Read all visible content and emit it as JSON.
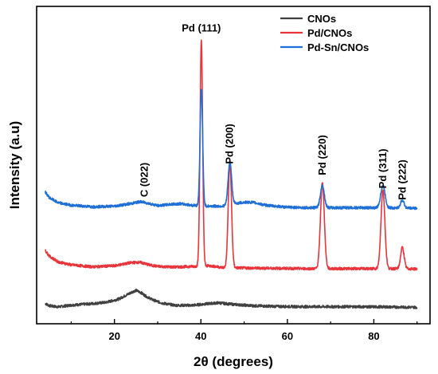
{
  "chart_data": {
    "type": "line",
    "xlabel": "2θ (degrees)",
    "ylabel": "Intensity (a.u)",
    "xlim": [
      2,
      93
    ],
    "x_ticks": [
      20,
      40,
      60,
      80
    ],
    "x_ticks_minor": [
      10,
      30,
      50,
      70,
      90
    ],
    "y_ticks_shown": false,
    "legend_position": "top-right",
    "legend": [
      "CNOs",
      "Pd/CNOs",
      "Pd-Sn/CNOs"
    ],
    "series": [
      {
        "name": "CNOs",
        "color": "#404040",
        "baseline": 0.07,
        "x": [
          4,
          5,
          7,
          10,
          14,
          18,
          21,
          23,
          24.5,
          25,
          26,
          27.5,
          29,
          31,
          34,
          38,
          41,
          44,
          47,
          52,
          58,
          64,
          70,
          76,
          82,
          86,
          90
        ],
        "y": [
          0.09,
          0.08,
          0.075,
          0.083,
          0.088,
          0.095,
          0.11,
          0.13,
          0.145,
          0.148,
          0.14,
          0.12,
          0.105,
          0.092,
          0.082,
          0.082,
          0.088,
          0.093,
          0.087,
          0.08,
          0.077,
          0.076,
          0.076,
          0.076,
          0.075,
          0.074,
          0.073
        ]
      },
      {
        "name": "Pd/CNOs",
        "color": "#e8343a",
        "baseline": 0.24,
        "x": [
          4,
          5,
          7,
          10,
          15,
          20,
          24,
          26,
          28,
          30,
          34,
          38,
          42,
          45,
          50,
          55,
          60,
          65,
          70,
          75,
          80,
          85,
          90
        ],
        "y": [
          0.325,
          0.3,
          0.275,
          0.262,
          0.253,
          0.258,
          0.272,
          0.273,
          0.262,
          0.255,
          0.252,
          0.255,
          0.258,
          0.25,
          0.248,
          0.247,
          0.246,
          0.245,
          0.245,
          0.245,
          0.245,
          0.245,
          0.244
        ],
        "peaks": [
          {
            "x": 40.1,
            "height": 1.0,
            "w": 0.3
          },
          {
            "x": 46.7,
            "height": 0.47,
            "w": 0.38
          },
          {
            "x": 68.1,
            "height": 0.38,
            "w": 0.45
          },
          {
            "x": 82.1,
            "height": 0.35,
            "w": 0.45
          },
          {
            "x": 86.6,
            "height": 0.095,
            "w": 0.4
          }
        ]
      },
      {
        "name": "Pd-Sn/CNOs",
        "color": "#1f6fd8",
        "baseline": 0.51,
        "x": [
          4,
          5,
          7,
          10,
          15,
          20,
          24,
          26,
          28,
          30,
          33,
          35,
          38,
          42,
          45,
          48,
          50,
          52,
          55,
          60,
          65,
          70,
          75,
          80,
          85,
          90
        ],
        "y": [
          0.585,
          0.56,
          0.538,
          0.527,
          0.52,
          0.523,
          0.535,
          0.543,
          0.535,
          0.525,
          0.531,
          0.534,
          0.527,
          0.523,
          0.523,
          0.535,
          0.54,
          0.54,
          0.527,
          0.518,
          0.516,
          0.516,
          0.516,
          0.516,
          0.515,
          0.514
        ],
        "peaks": [
          {
            "x": 40.1,
            "height": 0.52,
            "w": 0.3
          },
          {
            "x": 46.7,
            "height": 0.19,
            "w": 0.4
          },
          {
            "x": 68.1,
            "height": 0.1,
            "w": 0.45
          },
          {
            "x": 82.1,
            "height": 0.1,
            "w": 0.5
          },
          {
            "x": 86.6,
            "height": 0.035,
            "w": 0.4
          }
        ]
      }
    ],
    "annotations": [
      {
        "text": "Pd (111)",
        "x": 40.1,
        "y": 1.3,
        "rotation": 0
      },
      {
        "text": "C (022)",
        "x": 27.0,
        "y": 0.64,
        "rotation": -90
      },
      {
        "text": "Pd (200)",
        "x": 46.7,
        "y": 0.8,
        "rotation": -90
      },
      {
        "text": "Pd (220)",
        "x": 68.1,
        "y": 0.75,
        "rotation": -90
      },
      {
        "text": "Pd (311)",
        "x": 82.1,
        "y": 0.69,
        "rotation": -90
      },
      {
        "text": "Pd (222)",
        "x": 86.6,
        "y": 0.64,
        "rotation": -90
      }
    ]
  }
}
